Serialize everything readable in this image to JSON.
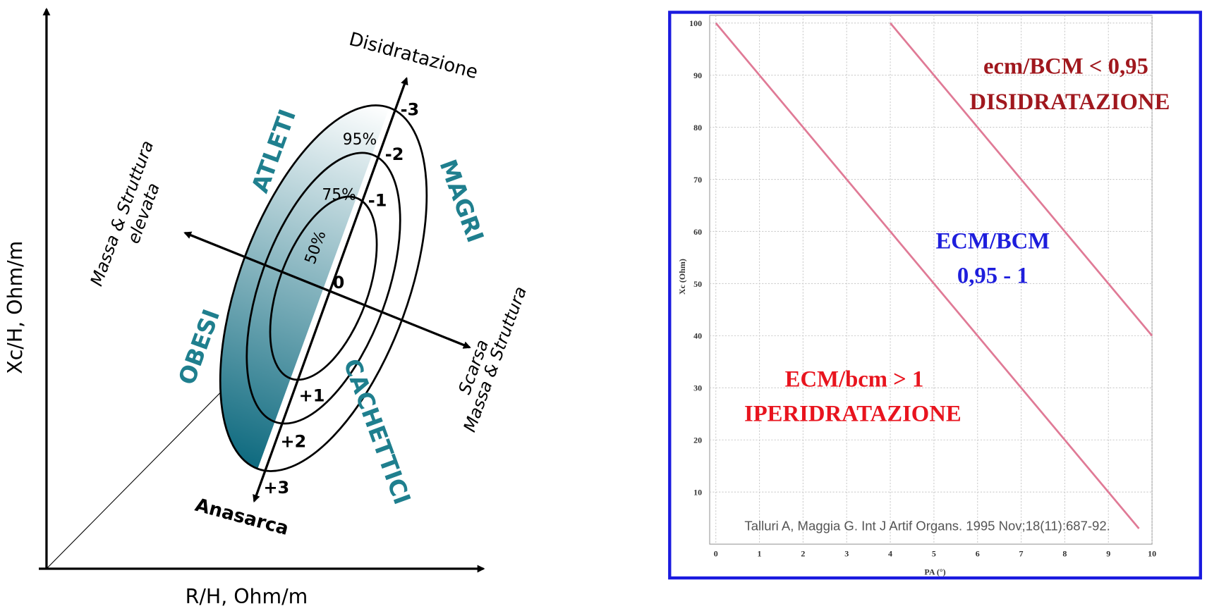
{
  "diagram": {
    "y_axis_label": "Xc/H, Ohm/m",
    "x_axis_label": "R/H, Ohm/m",
    "top_label": "Disidratazione",
    "bottom_label": "Anasarca",
    "left_label": [
      "Massa & Struttura",
      "elevata"
    ],
    "right_label": [
      "Scarsa",
      "Massa & Struttura"
    ],
    "groups": [
      "ATLETI",
      "MAGRI",
      "OBESI",
      "CACHETTICI"
    ],
    "scale": [
      "-3",
      "-2",
      "-1",
      "0",
      "+1",
      "+2",
      "+3"
    ],
    "percentiles": [
      "95%",
      "75%",
      "50%"
    ]
  },
  "chart_data": {
    "type": "line",
    "xlabel": "PA (°)",
    "ylabel": "Xc (Ohm)",
    "xlim": [
      0,
      10
    ],
    "ylim": [
      0,
      100
    ],
    "xticks": [
      0,
      1,
      2,
      3,
      4,
      5,
      6,
      7,
      8,
      9,
      10
    ],
    "yticks": [
      10,
      20,
      30,
      40,
      50,
      60,
      70,
      80,
      90,
      100
    ],
    "grid": true,
    "series": [
      {
        "color": "#e07a96",
        "x": [
          0,
          9.7
        ],
        "values": [
          100,
          3
        ]
      },
      {
        "color": "#e07a96",
        "x": [
          4,
          10
        ],
        "values": [
          100,
          40
        ]
      }
    ],
    "annotations": [
      "ecm/BCM < 0,95",
      "DISIDRATAZIONE",
      "ECM/BCM",
      "0,95 - 1",
      "ECM/bcm > 1",
      "IPERIDRATAZIONE"
    ],
    "source": "Talluri A, Maggia G. Int J Artif Organs. 1995 Nov;18(11):687-92."
  }
}
